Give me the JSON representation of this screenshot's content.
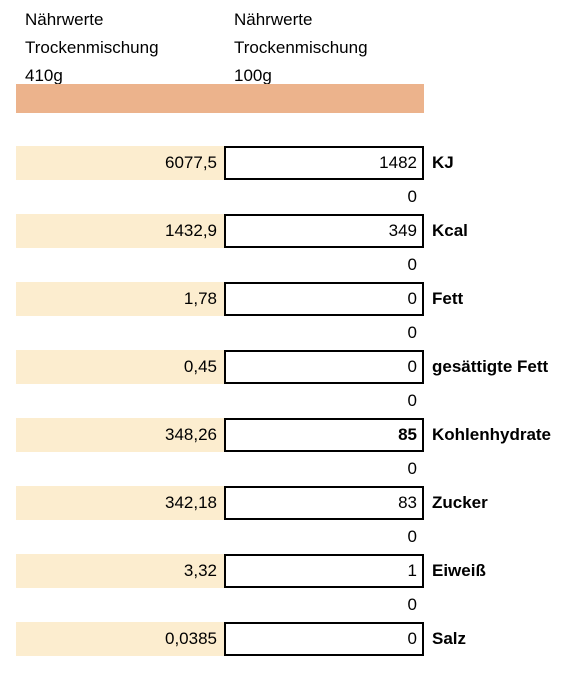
{
  "header": {
    "col1": "Nährwerte\nTrockenmischung\n410g",
    "col2": "Nährwerte\nTrockenmischung\n100g"
  },
  "colors": {
    "header_bar": "#ecb38c",
    "value_fill": "#fcedcf"
  },
  "rows": [
    {
      "value_410g": "6077,5",
      "value_100g": "1482",
      "label": "KJ",
      "below": "0"
    },
    {
      "value_410g": "1432,9",
      "value_100g": "349",
      "label": "Kcal",
      "below": "0"
    },
    {
      "value_410g": "1,78",
      "value_100g": "0",
      "label": "Fett",
      "below": "0"
    },
    {
      "value_410g": "0,45",
      "value_100g": "0",
      "label": "gesättigte Fett",
      "below": "0"
    },
    {
      "value_410g": "348,26",
      "value_100g": "85",
      "label": "Kohlenhydrate",
      "below": "0",
      "bold_value": true
    },
    {
      "value_410g": "342,18",
      "value_100g": "83",
      "label": "Zucker",
      "below": "0"
    },
    {
      "value_410g": "3,32",
      "value_100g": "1",
      "label": "Eiweiß",
      "below": "0"
    },
    {
      "value_410g": "0,0385",
      "value_100g": "0",
      "label": "Salz"
    }
  ]
}
